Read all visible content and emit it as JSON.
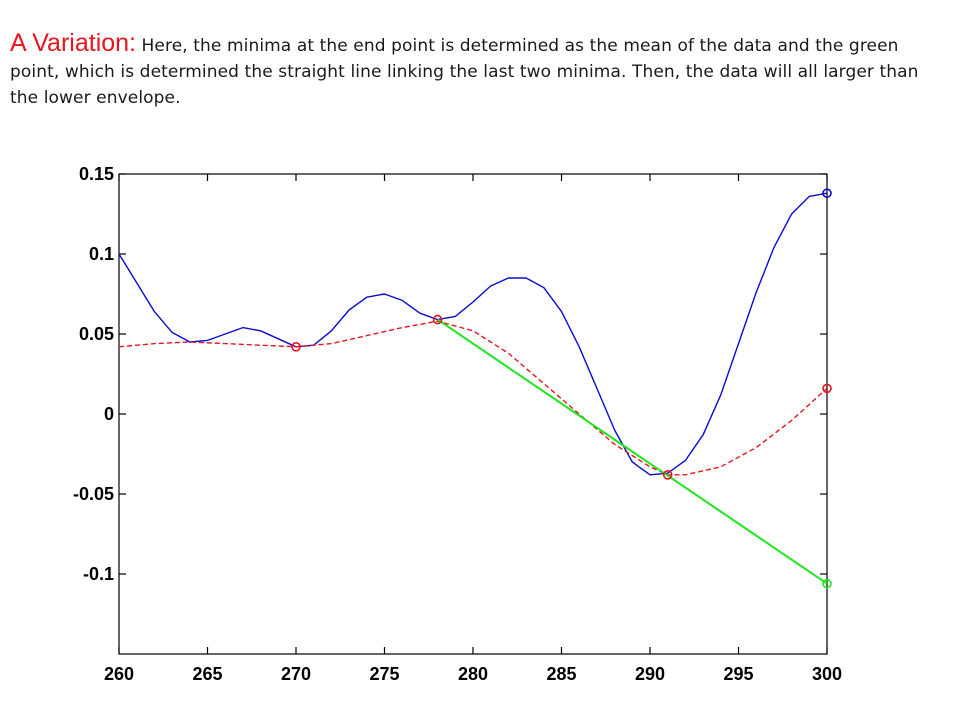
{
  "caption": {
    "lead": "A Variation:",
    "text": "Here, the minima at the end point is determined as the mean of the data and the green point, which is determined the straight line linking the last two minima. Then, the data will all larger than the lower envelope."
  },
  "colors": {
    "data": "#0b0bd4",
    "envelope": "#e8141e",
    "extension": "#1ee61e",
    "caption_lead": "#e8141e"
  },
  "chart_data": {
    "type": "line",
    "title": "",
    "xlabel": "",
    "ylabel": "",
    "xlim": [
      260,
      300
    ],
    "ylim": [
      -0.15,
      0.15
    ],
    "grid": false,
    "x_ticks": [
      {
        "value": 260,
        "label": "260"
      },
      {
        "value": 265,
        "label": "265"
      },
      {
        "value": 270,
        "label": "270"
      },
      {
        "value": 275,
        "label": "275"
      },
      {
        "value": 280,
        "label": "280"
      },
      {
        "value": 285,
        "label": "285"
      },
      {
        "value": 290,
        "label": "290"
      },
      {
        "value": 295,
        "label": "295"
      },
      {
        "value": 300,
        "label": "300"
      }
    ],
    "y_ticks": [
      {
        "value": 0.15,
        "label": "0.15"
      },
      {
        "value": 0.1,
        "label": "0.1"
      },
      {
        "value": 0.05,
        "label": "0.05"
      },
      {
        "value": 0,
        "label": "0"
      },
      {
        "value": -0.05,
        "label": "-0.05"
      },
      {
        "value": -0.1,
        "label": "-0.1"
      }
    ],
    "series": [
      {
        "key": "data",
        "style": "solid",
        "x": [
          260,
          261,
          262,
          263,
          264,
          265,
          266,
          267,
          268,
          269,
          270,
          271,
          272,
          273,
          274,
          275,
          276,
          277,
          278,
          279,
          280,
          281,
          282,
          283,
          284,
          285,
          286,
          287,
          288,
          289,
          290,
          291,
          292,
          293,
          294,
          295,
          296,
          297,
          298,
          299,
          300
        ],
        "y": [
          0.1,
          0.082,
          0.064,
          0.051,
          0.045,
          0.046,
          0.05,
          0.054,
          0.052,
          0.047,
          0.042,
          0.043,
          0.052,
          0.065,
          0.073,
          0.075,
          0.071,
          0.063,
          0.059,
          0.061,
          0.07,
          0.08,
          0.085,
          0.085,
          0.079,
          0.064,
          0.042,
          0.016,
          -0.01,
          -0.03,
          -0.038,
          -0.037,
          -0.029,
          -0.013,
          0.012,
          0.044,
          0.076,
          0.104,
          0.125,
          0.136,
          0.138
        ]
      },
      {
        "key": "lower-envelope",
        "style": "dashed",
        "x": [
          260,
          262,
          264,
          266,
          268,
          270,
          272,
          274,
          276,
          278,
          280,
          282,
          284,
          286,
          288,
          290,
          291,
          292,
          294,
          296,
          298,
          300
        ],
        "y": [
          0.042,
          0.044,
          0.045,
          0.044,
          0.043,
          0.042,
          0.044,
          0.049,
          0.054,
          0.058,
          0.052,
          0.038,
          0.019,
          0.0,
          -0.019,
          -0.033,
          -0.038,
          -0.038,
          -0.033,
          -0.021,
          -0.004,
          0.016
        ]
      },
      {
        "key": "extension",
        "style": "solid",
        "x": [
          278,
          300
        ],
        "y": [
          0.059,
          -0.106
        ]
      }
    ],
    "markers": [
      {
        "name": "data-end-marker",
        "x": 300,
        "y": 0.138,
        "color": "data"
      },
      {
        "name": "minima-marker-270",
        "x": 270,
        "y": 0.042,
        "color": "envelope"
      },
      {
        "name": "minima-marker-278",
        "x": 278,
        "y": 0.059,
        "color": "envelope"
      },
      {
        "name": "minima-marker-291",
        "x": 291,
        "y": -0.038,
        "color": "envelope"
      },
      {
        "name": "envelope-end-marker",
        "x": 300,
        "y": 0.016,
        "color": "envelope"
      },
      {
        "name": "extension-end-marker",
        "x": 300,
        "y": -0.106,
        "color": "extension"
      }
    ]
  }
}
